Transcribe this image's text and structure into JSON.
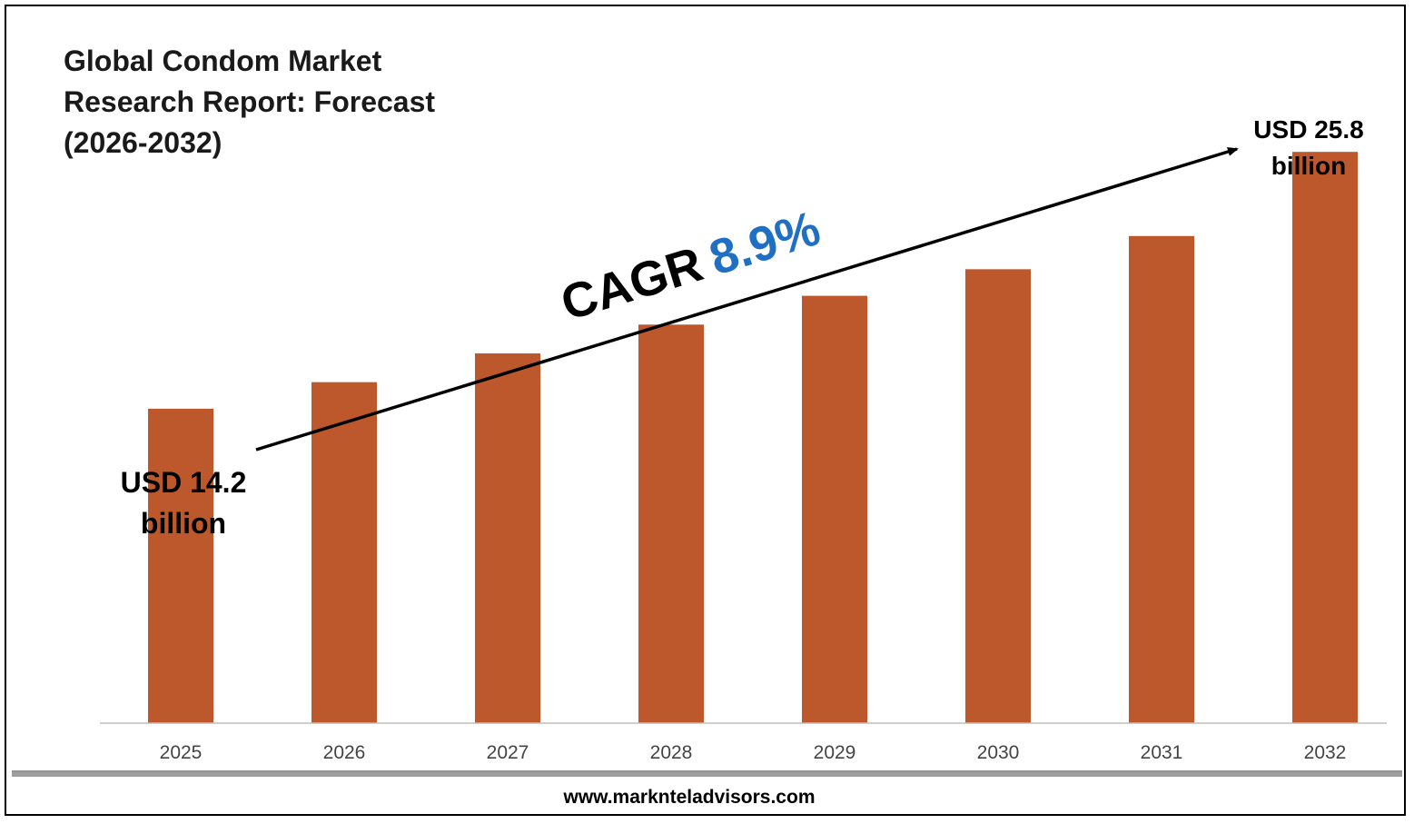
{
  "colors": {
    "bar": "#BD582C",
    "cagr_value": "#1F6FC5",
    "text": "#000000",
    "axis": "#bfbfbf"
  },
  "title_lines": [
    "Global Condom Market",
    "Research Report: Forecast",
    "(2026-2032)"
  ],
  "start_annotation": [
    "USD 14.2",
    "billion"
  ],
  "end_annotation": [
    "USD 25.8",
    "billion"
  ],
  "cagr": {
    "label": "CAGR",
    "value": "8.9%"
  },
  "footer": {
    "url": "www.marknteladvisors.com"
  },
  "chart_data": {
    "type": "bar",
    "categories": [
      "2025",
      "2026",
      "2027",
      "2028",
      "2029",
      "2030",
      "2031",
      "2032"
    ],
    "values": [
      14.2,
      15.4,
      16.7,
      18.0,
      19.3,
      20.5,
      22.0,
      25.8
    ],
    "ylim": [
      0,
      29.5
    ],
    "grid": false,
    "legend": "none"
  }
}
